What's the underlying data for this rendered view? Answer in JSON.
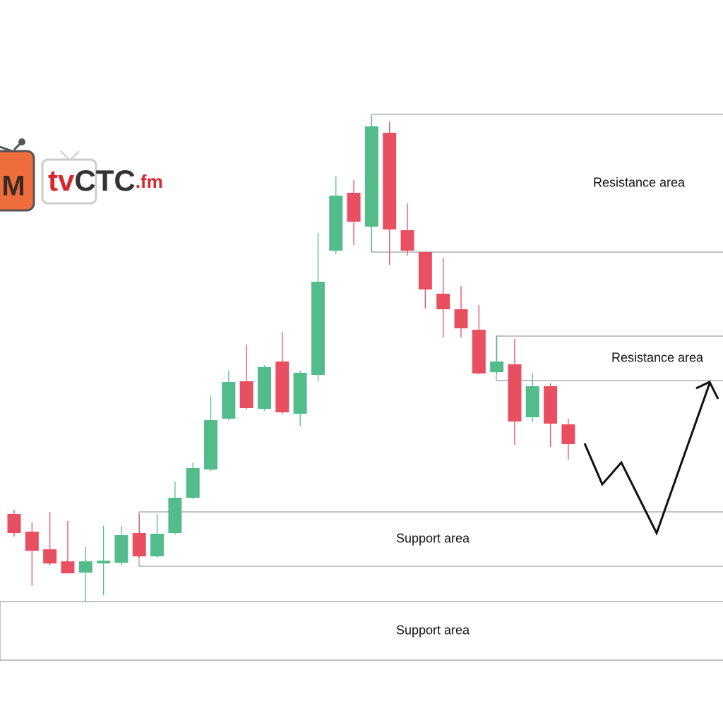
{
  "logo": {
    "icon": "M",
    "parts": [
      "tv",
      "CTC",
      ".fm"
    ]
  },
  "chart_data": {
    "type": "candlestick",
    "categories": [
      null,
      null,
      null,
      null,
      null,
      null,
      null,
      null,
      null,
      null,
      null,
      null,
      null,
      null,
      null,
      null,
      null,
      null,
      null,
      null,
      null,
      null,
      null,
      null,
      null,
      null,
      null,
      null,
      null,
      null,
      null,
      null
    ],
    "open": [
      272,
      247,
      222,
      205,
      189,
      202,
      203,
      245,
      212,
      245,
      295,
      335,
      407,
      460,
      421,
      488,
      414,
      469,
      645,
      727,
      679,
      812,
      674,
      643,
      584,
      562,
      533,
      473,
      484,
      409,
      453,
      399
    ],
    "high": [
      278,
      260,
      275,
      262,
      225,
      255,
      255,
      272,
      272,
      318,
      345,
      440,
      475,
      512,
      483,
      530,
      475,
      670,
      750,
      745,
      835,
      828,
      712,
      643,
      635,
      595,
      568,
      525,
      520,
      472,
      457,
      407
    ],
    "low": [
      240,
      170,
      200,
      188,
      148,
      157,
      200,
      210,
      210,
      243,
      293,
      333,
      405,
      420,
      418,
      414,
      397,
      460,
      640,
      653,
      643,
      625,
      638,
      563,
      522,
      522,
      470,
      470,
      370,
      403,
      367,
      349
    ],
    "close": [
      245,
      220,
      202,
      188,
      205,
      206,
      242,
      212,
      244,
      295,
      337,
      405,
      459,
      422,
      480,
      416,
      472,
      601,
      723,
      686,
      821,
      675,
      645,
      590,
      562,
      535,
      471,
      488,
      403,
      453,
      400,
      371
    ],
    "up_color": "#52bd8b",
    "down_color": "#e84f60",
    "ylim": [
      0,
      1000
    ],
    "zones": [
      {
        "label": "Resistance area",
        "range": [
          643,
          838
        ]
      },
      {
        "label": "Resistance area",
        "range": [
          461,
          524
        ]
      },
      {
        "label": "Support area",
        "range": [
          198,
          275
        ]
      },
      {
        "label": "Support area",
        "range": [
          65,
          148
        ]
      }
    ]
  }
}
